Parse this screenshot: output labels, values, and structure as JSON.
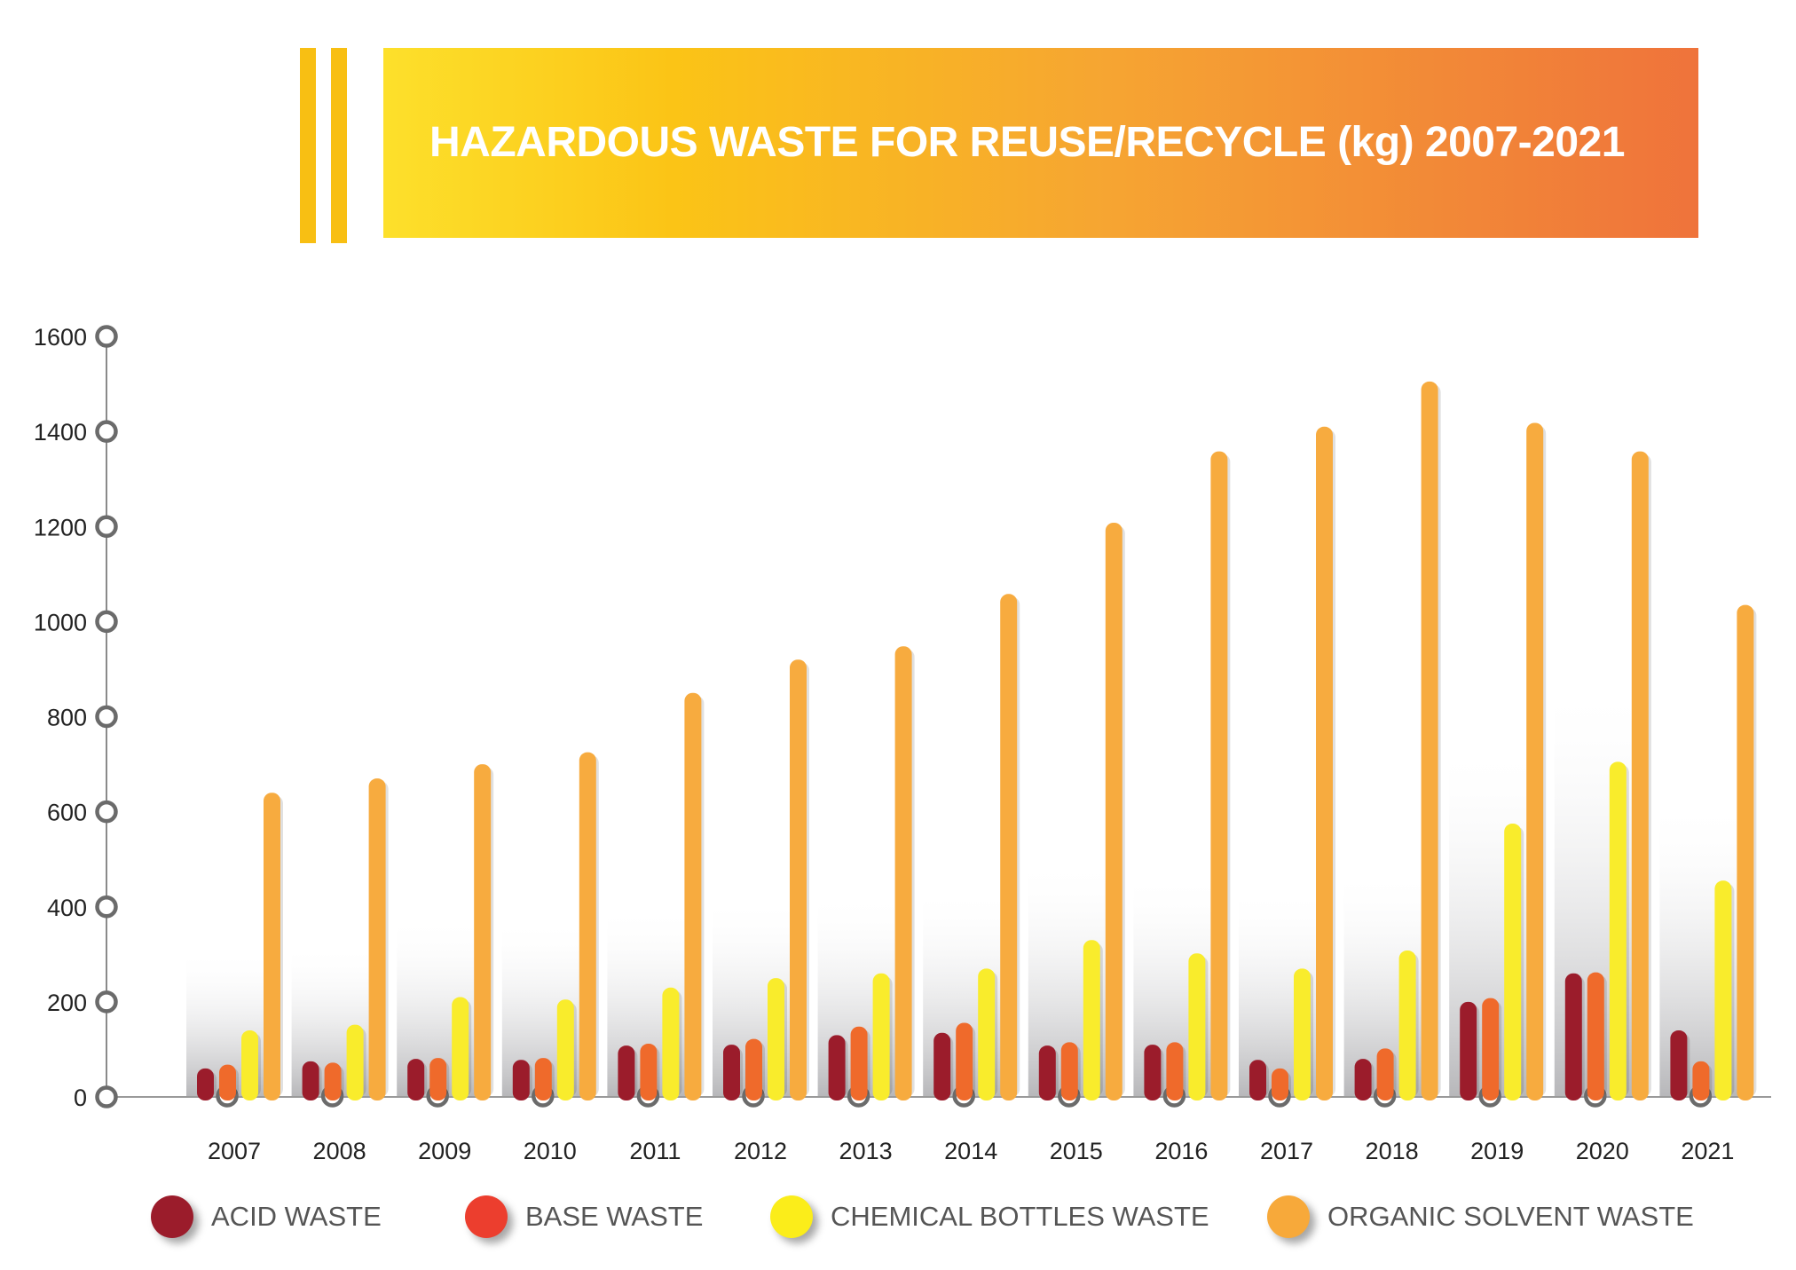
{
  "title": "HAZARDOUS WASTE FOR REUSE/RECYCLE (kg) 2007-2021",
  "legend": [
    {
      "label": "ACID WASTE",
      "color": "#9b1c2b"
    },
    {
      "label": "BASE WASTE",
      "color": "#ec3e2e"
    },
    {
      "label": "CHEMICAL BOTTLES WASTE",
      "color": "#fbed1a"
    },
    {
      "label": "ORGANIC SOLVENT WASTE",
      "color": "#f7a93a"
    }
  ],
  "chart_data": {
    "type": "bar",
    "title": "HAZARDOUS WASTE FOR REUSE/RECYCLE (kg) 2007-2021",
    "xlabel": "",
    "ylabel": "",
    "ylim": [
      0,
      1600
    ],
    "yticks": [
      0,
      200,
      400,
      600,
      800,
      1000,
      1200,
      1400,
      1600
    ],
    "grid": false,
    "legend_position": "bottom",
    "categories": [
      "2007",
      "2008",
      "2009",
      "2010",
      "2011",
      "2012",
      "2013",
      "2014",
      "2015",
      "2016",
      "2017",
      "2018",
      "2019",
      "2020",
      "2021"
    ],
    "series": [
      {
        "name": "ACID WASTE",
        "color": "#9b1c2b",
        "values": [
          60,
          75,
          80,
          78,
          108,
          110,
          130,
          135,
          108,
          110,
          78,
          80,
          200,
          260,
          140
        ]
      },
      {
        "name": "BASE WASTE",
        "color": "#ef6a2b",
        "values": [
          68,
          72,
          82,
          82,
          112,
          122,
          148,
          156,
          115,
          115,
          60,
          102,
          208,
          262,
          75
        ]
      },
      {
        "name": "CHEMICAL BOTTLES WASTE",
        "color": "#f9ec2c",
        "values": [
          140,
          152,
          210,
          205,
          230,
          250,
          260,
          270,
          330,
          302,
          270,
          308,
          575,
          705,
          455
        ]
      },
      {
        "name": "ORGANIC SOLVENT WASTE",
        "color": "#f7ab3f",
        "values": [
          640,
          670,
          700,
          725,
          850,
          920,
          948,
          1058,
          1208,
          1358,
          1410,
          1505,
          1418,
          1358,
          1035
        ]
      }
    ]
  }
}
